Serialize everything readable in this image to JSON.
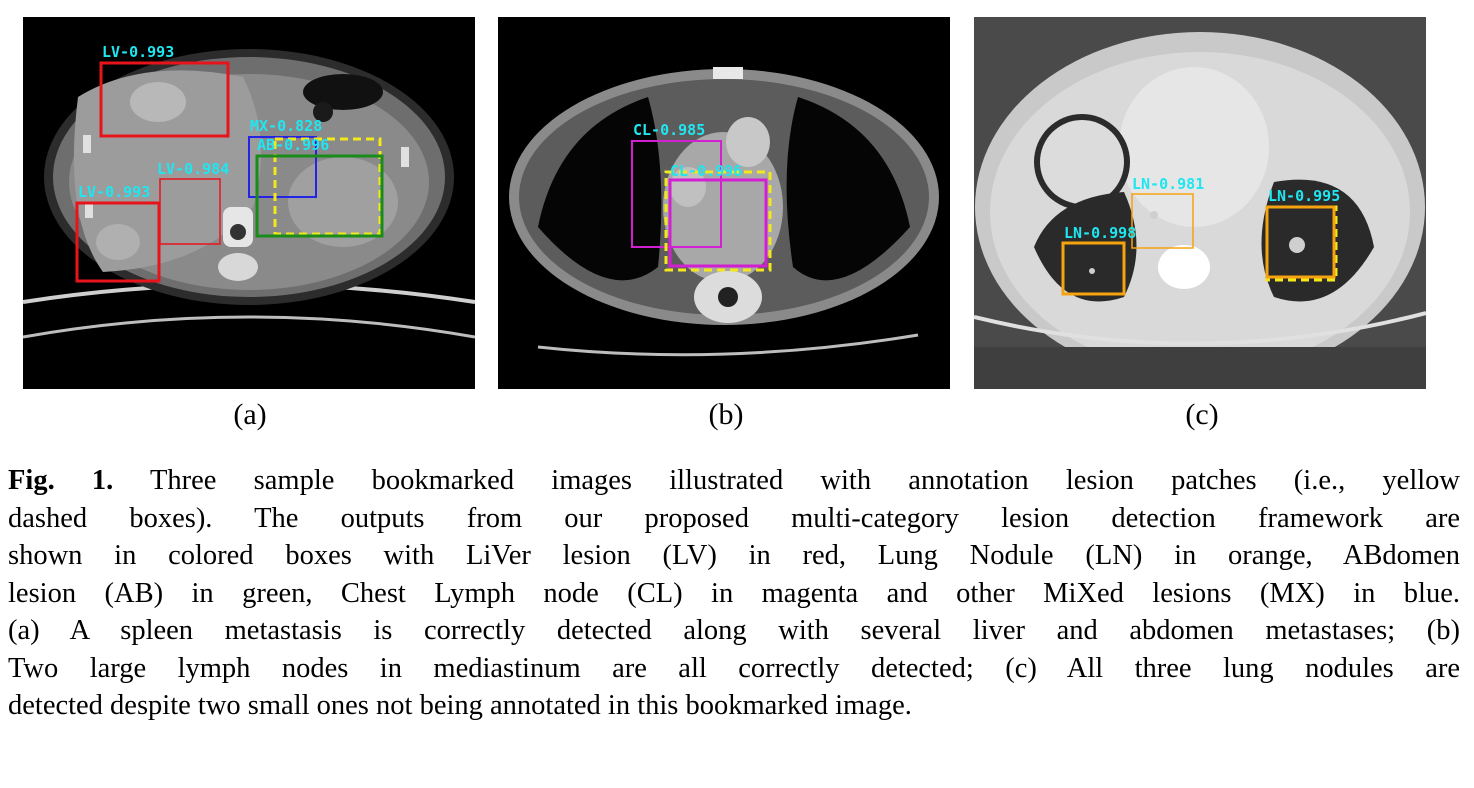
{
  "figure": {
    "panels": [
      {
        "id": "a",
        "sublabel": "(a)",
        "detections": [
          {
            "label": "LV-0.993",
            "category": "LV"
          },
          {
            "label": "MX-0.828",
            "category": "MX"
          },
          {
            "label": "AB-0.996",
            "category": "AB"
          },
          {
            "label": "LV-0.984",
            "category": "LV"
          },
          {
            "label": "LV-0.993",
            "category": "LV"
          }
        ]
      },
      {
        "id": "b",
        "sublabel": "(b)",
        "detections": [
          {
            "label": "CL-0.985",
            "category": "CL"
          },
          {
            "label": "CL-0.996",
            "category": "CL"
          }
        ]
      },
      {
        "id": "c",
        "sublabel": "(c)",
        "detections": [
          {
            "label": "LN-0.981",
            "category": "LN"
          },
          {
            "label": "LN-0.995",
            "category": "LN"
          },
          {
            "label": "LN-0.998",
            "category": "LN"
          }
        ]
      }
    ],
    "category_colors": {
      "LV": "#e8141b",
      "LN": "#f5a30f",
      "AB": "#1a8c1a",
      "CL": "#d21fd2",
      "MX": "#2424e6",
      "annotation": "#f2e81a",
      "label_text": "#1fe6f0"
    },
    "caption": {
      "prefix": "Fig. 1.",
      "lines": [
        " Three sample bookmarked images illustrated with annotation lesion patches (i.e., yellow",
        "dashed boxes). The outputs from our proposed multi-category lesion detection framework are",
        "shown in colored boxes with LiVer lesion (LV) in red, Lung Nodule (LN) in orange, ABdomen",
        "lesion (AB) in green, Chest Lymph node (CL) in magenta and other MiXed lesions (MX) in blue.",
        "(a) A spleen metastasis is correctly detected along with several liver and abdomen metastases; (b)",
        "Two large lymph nodes in mediastinum are all correctly detected; (c) All three lung nodules are",
        "detected despite two small ones not being annotated in this bookmarked image."
      ]
    }
  }
}
